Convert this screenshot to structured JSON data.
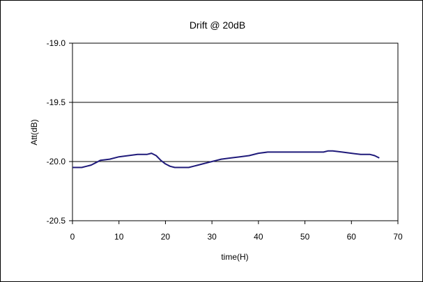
{
  "chart_data": {
    "type": "line",
    "title": "Drift @ 20dB",
    "xlabel": "time(H)",
    "ylabel": "Att(dB)",
    "xlim": [
      0,
      70
    ],
    "ylim": [
      -20.5,
      -19.0
    ],
    "y_reversed": true,
    "xticks": [
      0,
      10,
      20,
      30,
      40,
      50,
      60,
      70
    ],
    "xtick_labels": [
      "0",
      "10",
      "20",
      "30",
      "40",
      "50",
      "60",
      "70"
    ],
    "yticks": [
      -19.0,
      -19.5,
      -20.0,
      -20.5
    ],
    "ytick_labels": [
      "-19.0",
      "-19.5",
      "-20.0",
      "-20.5"
    ],
    "grid": "horizontal",
    "legend": "none",
    "series": [
      {
        "color": "#1f1a7a",
        "x": [
          0,
          1,
          2,
          3,
          4,
          5,
          6,
          8,
          10,
          12,
          14,
          16,
          17,
          18,
          19,
          20,
          21,
          22,
          23,
          24,
          25,
          26,
          27,
          28,
          29,
          30,
          31,
          32,
          34,
          36,
          38,
          40,
          42,
          44,
          46,
          48,
          50,
          52,
          54,
          55,
          56,
          58,
          60,
          62,
          64,
          65,
          66
        ],
        "y": [
          -20.05,
          -20.05,
          -20.05,
          -20.04,
          -20.03,
          -20.01,
          -19.99,
          -19.98,
          -19.96,
          -19.95,
          -19.94,
          -19.94,
          -19.93,
          -19.95,
          -19.99,
          -20.02,
          -20.04,
          -20.05,
          -20.05,
          -20.05,
          -20.05,
          -20.04,
          -20.03,
          -20.02,
          -20.01,
          -20.0,
          -19.99,
          -19.98,
          -19.97,
          -19.96,
          -19.95,
          -19.93,
          -19.92,
          -19.92,
          -19.92,
          -19.92,
          -19.92,
          -19.92,
          -19.92,
          -19.91,
          -19.91,
          -19.92,
          -19.93,
          -19.94,
          -19.94,
          -19.95,
          -19.97
        ]
      }
    ]
  }
}
